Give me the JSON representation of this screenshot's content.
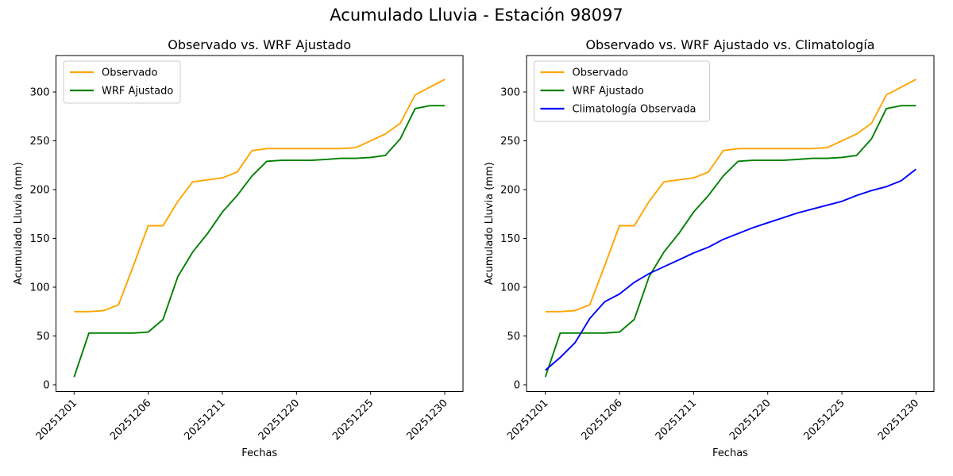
{
  "figure": {
    "suptitle": "Acumulado Lluvia - Estación 98097"
  },
  "chart_data": [
    {
      "type": "line",
      "title": "Observado vs. WRF Ajustado",
      "xlabel": "Fechas",
      "ylabel": "Acumulado Lluvia (mm)",
      "n_points": 26,
      "x_tick_positions": [
        0,
        5,
        10,
        15,
        20,
        25
      ],
      "x_tick_labels": [
        "20251201",
        "20251206",
        "20251211",
        "20251220",
        "20251225",
        "20251230"
      ],
      "y_ticks": [
        0,
        50,
        100,
        150,
        200,
        250,
        300
      ],
      "ylim": [
        -8,
        338
      ],
      "grid": false,
      "legend_position": "upper-left",
      "series": [
        {
          "name": "Observado",
          "color": "#FFA500",
          "values": [
            75,
            75,
            76,
            82,
            122,
            163,
            163,
            188,
            208,
            210,
            212,
            218,
            240,
            242,
            242,
            242,
            242,
            242,
            242,
            243,
            250,
            257,
            268,
            297,
            305,
            313
          ]
        },
        {
          "name": "WRF Ajustado",
          "color": "#008000",
          "values": [
            8,
            53,
            53,
            53,
            53,
            54,
            67,
            111,
            136,
            155,
            177,
            194,
            214,
            229,
            230,
            230,
            230,
            231,
            232,
            232,
            233,
            235,
            252,
            283,
            286,
            286
          ]
        }
      ]
    },
    {
      "type": "line",
      "title": "Observado vs. WRF Ajustado vs. Climatología",
      "xlabel": "Fechas",
      "ylabel": "Acumulado Lluvia (mm)",
      "n_points": 26,
      "x_tick_positions": [
        0,
        5,
        10,
        15,
        20,
        25
      ],
      "x_tick_labels": [
        "20251201",
        "20251206",
        "20251211",
        "20251220",
        "20251225",
        "20251230"
      ],
      "y_ticks": [
        0,
        50,
        100,
        150,
        200,
        250,
        300
      ],
      "ylim": [
        -8,
        338
      ],
      "grid": false,
      "legend_position": "upper-left",
      "series": [
        {
          "name": "Observado",
          "color": "#FFA500",
          "values": [
            75,
            75,
            76,
            82,
            122,
            163,
            163,
            188,
            208,
            210,
            212,
            218,
            240,
            242,
            242,
            242,
            242,
            242,
            242,
            243,
            250,
            257,
            268,
            297,
            305,
            313
          ]
        },
        {
          "name": "WRF Ajustado",
          "color": "#008000",
          "values": [
            8,
            53,
            53,
            53,
            53,
            54,
            67,
            111,
            136,
            155,
            177,
            194,
            214,
            229,
            230,
            230,
            230,
            231,
            232,
            232,
            233,
            235,
            252,
            283,
            286,
            286
          ]
        },
        {
          "name": "Climatología Observada",
          "color": "#0000FF",
          "values": [
            15,
            28,
            43,
            68,
            85,
            93,
            105,
            114,
            121,
            128,
            135,
            141,
            149,
            155,
            161,
            166,
            171,
            176,
            180,
            184,
            188,
            194,
            199,
            203,
            209,
            221
          ]
        }
      ]
    }
  ]
}
